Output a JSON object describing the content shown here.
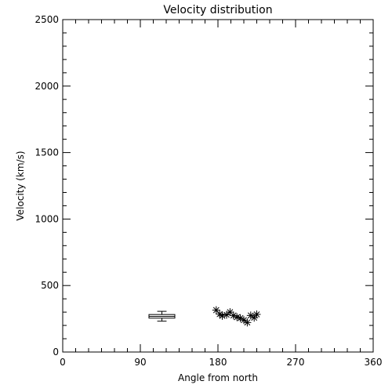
{
  "chart_data": {
    "type": "scatter",
    "title": "Velocity distribution",
    "xlabel": "Angle from north",
    "ylabel": "Velocity (km/s)",
    "xlim": [
      0,
      360
    ],
    "ylim": [
      0,
      2500
    ],
    "xticks": [
      0,
      90,
      180,
      270,
      360
    ],
    "xtick_labels": [
      "0",
      "90",
      "180",
      "270",
      "360"
    ],
    "yticks": [
      0,
      500,
      1000,
      1500,
      2000,
      2500
    ],
    "ytick_labels": [
      "0",
      "500",
      "1000",
      "1500",
      "2000",
      "2500"
    ],
    "grid": false,
    "marker": "asterisk",
    "color": "#000000",
    "boxplot": {
      "x_min": 100,
      "x_max": 130,
      "whisker_low": 232,
      "q1": 255,
      "median": 268,
      "q3": 282,
      "whisker_high": 306
    },
    "points": [
      {
        "x": 178,
        "y": 315
      },
      {
        "x": 182,
        "y": 285
      },
      {
        "x": 185,
        "y": 272
      },
      {
        "x": 190,
        "y": 280
      },
      {
        "x": 194,
        "y": 300
      },
      {
        "x": 198,
        "y": 275
      },
      {
        "x": 202,
        "y": 262
      },
      {
        "x": 206,
        "y": 255
      },
      {
        "x": 210,
        "y": 240
      },
      {
        "x": 214,
        "y": 222
      },
      {
        "x": 218,
        "y": 275
      },
      {
        "x": 222,
        "y": 258
      },
      {
        "x": 225,
        "y": 283
      }
    ]
  }
}
